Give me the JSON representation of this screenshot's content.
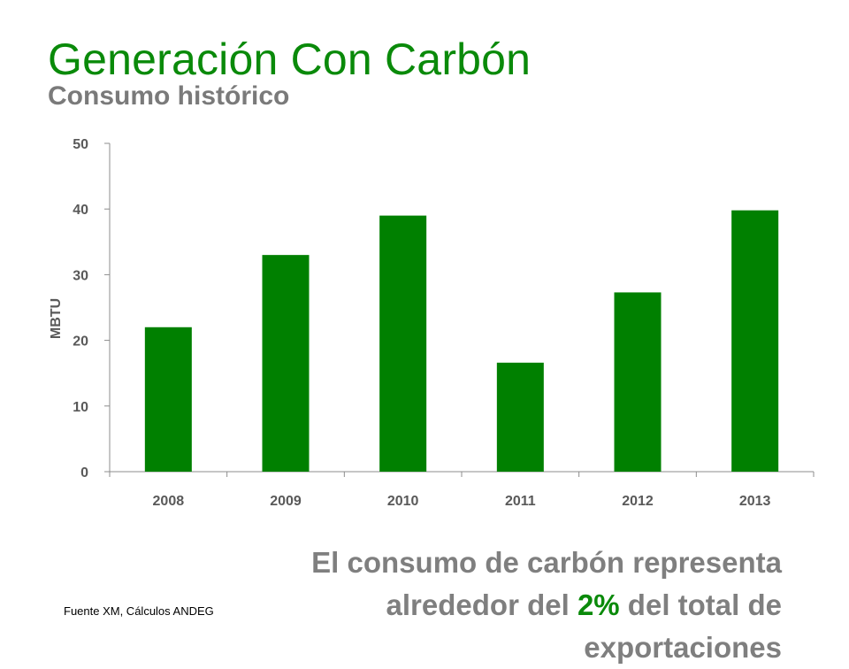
{
  "slide": {
    "title": "Generación Con Carbón",
    "subtitle": "Consumo histórico",
    "statement": {
      "before": "El consumo de carbón representa alrededor del ",
      "highlight": "2%",
      "after": " del total de exportaciones"
    },
    "source": "Fuente XM, Cálculos ANDEG"
  },
  "colors": {
    "title": "#0a8a0a",
    "bar": "#008000",
    "text_gray": "#7f7f7f"
  },
  "chart_data": {
    "type": "bar",
    "categories": [
      "2008",
      "2009",
      "2010",
      "2011",
      "2012",
      "2013"
    ],
    "values": [
      22,
      33,
      39,
      16.6,
      27.3,
      39.8
    ],
    "title": "",
    "xlabel": "",
    "ylabel": "MBTU",
    "ylim": [
      0,
      50
    ],
    "yticks": [
      0,
      10,
      20,
      30,
      40,
      50
    ],
    "grid": false,
    "legend": "none"
  }
}
